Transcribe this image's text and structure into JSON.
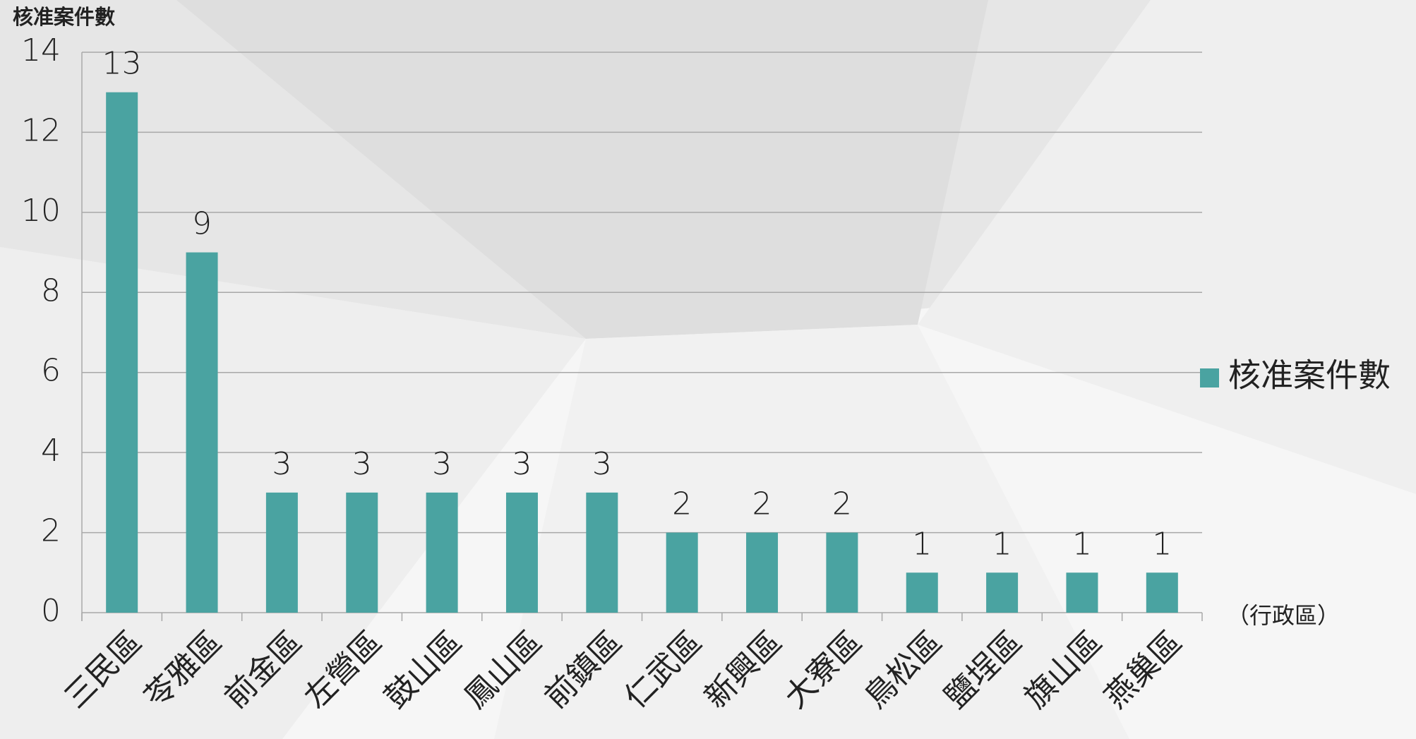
{
  "chart_data": {
    "type": "bar",
    "y_axis_label": "核准案件數",
    "x_axis_label": "（行政區）",
    "categories": [
      "三民區",
      "苓雅區",
      "前金區",
      "左營區",
      "鼓山區",
      "鳳山區",
      "前鎮區",
      "仁武區",
      "新興區",
      "大寮區",
      "鳥松區",
      "鹽埕區",
      "旗山區",
      "燕巢區"
    ],
    "series": [
      {
        "name": "核准案件數",
        "color": "#4aa3a1",
        "values": [
          13,
          9,
          3,
          3,
          3,
          3,
          3,
          2,
          2,
          2,
          1,
          1,
          1,
          1
        ]
      }
    ],
    "ylim": [
      0,
      14
    ],
    "yticks": [
      0,
      2,
      4,
      6,
      8,
      10,
      12,
      14
    ],
    "grid": true,
    "legend": "right"
  }
}
